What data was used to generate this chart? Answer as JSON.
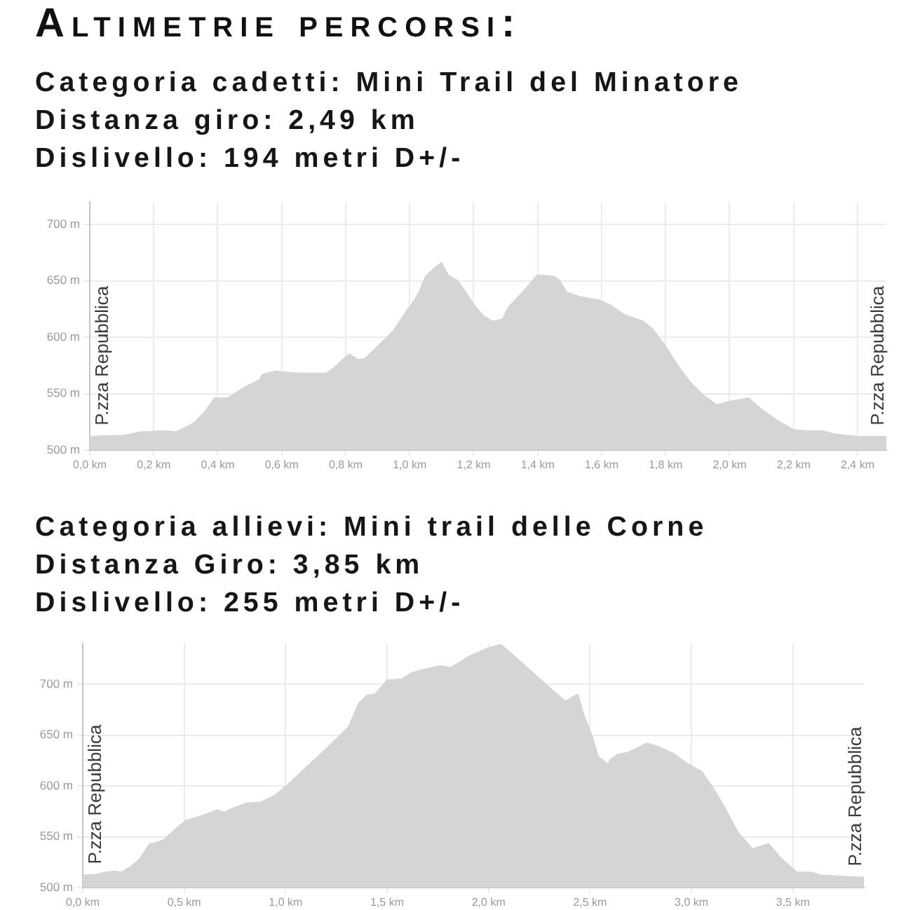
{
  "chart_data": [
    {
      "type": "area",
      "title": "Altimetrie percorsi:",
      "subtitle": "Categoria cadetti: Mini Trail del Minatore",
      "annotations": [
        "Distanza giro: 2,49 km",
        "Dislivello: 194 metri D+/-",
        {
          "text": "P.zza Repubblica",
          "x": 0,
          "y": 512
        },
        {
          "text": "P.zza Repubblica",
          "x": 2.49,
          "y": 512
        }
      ],
      "x": [
        0,
        0.11,
        0.16,
        0.24,
        0.27,
        0.3,
        0.33,
        0.36,
        0.39,
        0.43,
        0.48,
        0.53,
        0.54,
        0.58,
        0.61,
        0.65,
        0.74,
        0.76,
        0.79,
        0.81,
        0.84,
        0.86,
        0.9,
        0.95,
        0.99,
        1.01,
        1.03,
        1.05,
        1.08,
        1.1,
        1.12,
        1.15,
        1.17,
        1.2,
        1.23,
        1.26,
        1.29,
        1.31,
        1.36,
        1.39,
        1.4,
        1.45,
        1.47,
        1.49,
        1.53,
        1.59,
        1.63,
        1.67,
        1.73,
        1.76,
        1.8,
        1.84,
        1.88,
        1.92,
        1.96,
        2.0,
        2.06,
        2.1,
        2.15,
        2.2,
        2.24,
        2.29,
        2.33,
        2.4,
        2.49
      ],
      "values": [
        512,
        513,
        516,
        517,
        516,
        520,
        525,
        534,
        546,
        546,
        555,
        562,
        567,
        570,
        569,
        568,
        568,
        572,
        580,
        585,
        580,
        581,
        592,
        606,
        623,
        631,
        640,
        654,
        662,
        666,
        655,
        650,
        642,
        629,
        619,
        614,
        616,
        627,
        642,
        652,
        655,
        654,
        650,
        640,
        636,
        633,
        628,
        620,
        614,
        607,
        592,
        574,
        559,
        548,
        540,
        543,
        546,
        536,
        526,
        518,
        517,
        517,
        514,
        512,
        512
      ],
      "color": "#d4d5d7",
      "xlim": [
        0,
        2.49
      ],
      "xticks": [
        {
          "value": 0,
          "label": "0,0 km"
        },
        {
          "value": 0.2,
          "label": "0,2 km"
        },
        {
          "value": 0.4,
          "label": "0,4 km"
        },
        {
          "value": 0.6,
          "label": "0,6 km"
        },
        {
          "value": 0.8,
          "label": "0,8 km"
        },
        {
          "value": 1.0,
          "label": "1,0 km"
        },
        {
          "value": 1.2,
          "label": "1,2 km"
        },
        {
          "value": 1.4,
          "label": "1,4 km"
        },
        {
          "value": 1.6,
          "label": "1,6 km"
        },
        {
          "value": 1.8,
          "label": "1,8 km"
        },
        {
          "value": 2.0,
          "label": "2,0 km"
        },
        {
          "value": 2.2,
          "label": "2,2 km"
        },
        {
          "value": 2.4,
          "label": "2,4 km"
        }
      ],
      "ylim": [
        500,
        720
      ],
      "yticks": [
        {
          "value": 500,
          "label": "500 m"
        },
        {
          "value": 550,
          "label": "550 m"
        },
        {
          "value": 600,
          "label": "600 m"
        },
        {
          "value": 650,
          "label": "650 m"
        },
        {
          "value": 700,
          "label": "700 m"
        }
      ],
      "grid": true
    },
    {
      "type": "area",
      "subtitle": "Categoria allievi: Mini trail delle Corne",
      "annotations": [
        "Distanza Giro: 3,85 km",
        "Dislivello: 255 metri D+/-",
        {
          "text": "P.zza Repubblica",
          "x": 0,
          "y": 512
        },
        {
          "text": "P.zza Repubblica",
          "x": 3.85,
          "y": 510
        }
      ],
      "x": [
        0,
        0.07,
        0.11,
        0.16,
        0.19,
        0.24,
        0.28,
        0.33,
        0.36,
        0.4,
        0.46,
        0.51,
        0.58,
        0.66,
        0.7,
        0.74,
        0.81,
        0.88,
        0.95,
        1.01,
        1.09,
        1.16,
        1.25,
        1.31,
        1.36,
        1.4,
        1.44,
        1.5,
        1.57,
        1.62,
        1.67,
        1.74,
        1.77,
        1.81,
        1.87,
        1.9,
        1.99,
        2.06,
        2.13,
        2.22,
        2.31,
        2.38,
        2.41,
        2.44,
        2.47,
        2.51,
        2.54,
        2.59,
        2.6,
        2.64,
        2.69,
        2.74,
        2.78,
        2.83,
        2.91,
        2.97,
        3.05,
        3.1,
        3.16,
        3.23,
        3.3,
        3.38,
        3.44,
        3.52,
        3.59,
        3.64,
        3.73,
        3.85
      ],
      "values": [
        512,
        513,
        515,
        516,
        515,
        521,
        528,
        543,
        544,
        547,
        558,
        566,
        570,
        576,
        574,
        578,
        583,
        584,
        591,
        601,
        616,
        629,
        646,
        658,
        681,
        689,
        690,
        704,
        705,
        711,
        714,
        717,
        718,
        716,
        723,
        727,
        735,
        739,
        727,
        711,
        695,
        683,
        687,
        690,
        669,
        649,
        629,
        621,
        626,
        631,
        633,
        638,
        642,
        639,
        632,
        623,
        614,
        600,
        580,
        554,
        538,
        543,
        529,
        515,
        515,
        512,
        511,
        510
      ],
      "color": "#d4d5d7",
      "xlim": [
        0,
        3.85
      ],
      "xticks": [
        {
          "value": 0,
          "label": "0,0 km"
        },
        {
          "value": 0.5,
          "label": "0,5 km"
        },
        {
          "value": 1.0,
          "label": "1,0 km"
        },
        {
          "value": 1.5,
          "label": "1,5 km"
        },
        {
          "value": 2.0,
          "label": "2,0 km"
        },
        {
          "value": 2.5,
          "label": "2,5 km"
        },
        {
          "value": 3.0,
          "label": "3,0 km"
        },
        {
          "value": 3.5,
          "label": "3,5 km"
        }
      ],
      "ylim": [
        500,
        740
      ],
      "yticks": [
        {
          "value": 500,
          "label": "500 m"
        },
        {
          "value": 550,
          "label": "550 m"
        },
        {
          "value": 600,
          "label": "600 m"
        },
        {
          "value": 650,
          "label": "650 m"
        },
        {
          "value": 700,
          "label": "700 m"
        }
      ],
      "grid": true
    }
  ]
}
